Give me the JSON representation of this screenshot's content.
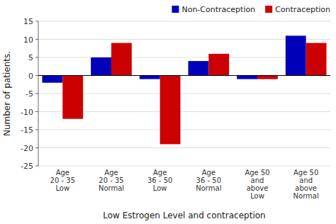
{
  "chart_data": {
    "type": "bar",
    "categories": [
      "Age\n20 - 35\nLow",
      "Age\n20 - 35\nNormal",
      "Age\n36 - 50\nLow",
      "Age\n36 - 50\nNormal",
      "Age 50\nand\nabove\nLow",
      "Age 50\nand\nabove\nNormal"
    ],
    "series": [
      {
        "name": "Non-Contraception",
        "color": "#0000BB",
        "values": [
          -2,
          5,
          -1,
          4,
          -1,
          11
        ]
      },
      {
        "name": "Contraception",
        "color": "#CC0000",
        "values": [
          -12,
          9,
          -19,
          6,
          -1,
          9
        ]
      }
    ],
    "xlabel": "Low Estrogen Level and contraception",
    "ylabel": "Number of patients.",
    "ylim": [
      -25,
      15
    ],
    "yticks": [
      -25,
      -20,
      -15,
      -10,
      -5,
      0,
      5,
      10,
      15
    ],
    "grid": true,
    "legend": "upper right"
  }
}
